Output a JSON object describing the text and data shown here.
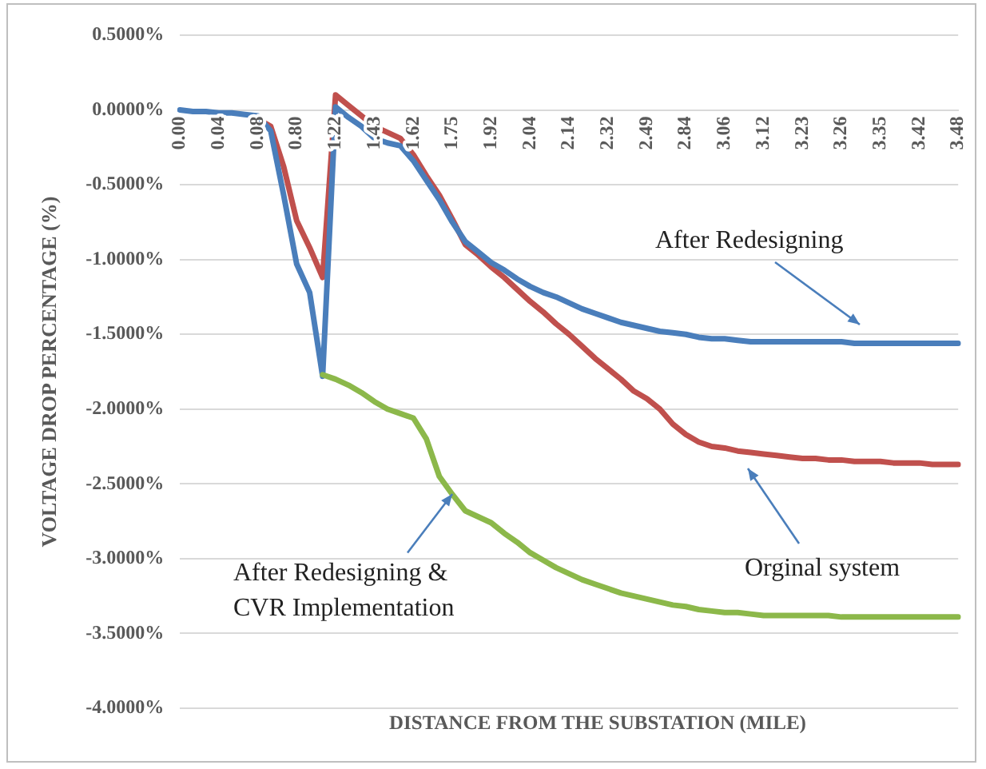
{
  "chart_data": {
    "type": "line",
    "ylabel": "VOLTAGE DROP PERCENTAGE (%)",
    "xlabel": "DISTANCE FROM THE SUBSTATION (MILE)",
    "categories": [
      "0.00",
      null,
      null,
      "0.04",
      null,
      null,
      "0.08",
      null,
      null,
      "0.80",
      null,
      null,
      "1.22",
      null,
      null,
      "1.43",
      null,
      null,
      "1.62",
      null,
      null,
      "1.75",
      null,
      null,
      "1.92",
      null,
      null,
      "2.04",
      null,
      null,
      "2.14",
      null,
      null,
      "2.32",
      null,
      null,
      "2.49",
      null,
      null,
      "2.84",
      null,
      null,
      "3.06",
      null,
      null,
      "3.12",
      null,
      null,
      "3.23",
      null,
      null,
      "3.26",
      null,
      null,
      "3.35",
      null,
      null,
      "3.42",
      null,
      null,
      "3.48"
    ],
    "series": [
      {
        "color": "#c0504d",
        "values": [
          null,
          null,
          null,
          null,
          null,
          null,
          -0.06,
          -0.11,
          -0.38,
          -0.74,
          -0.92,
          -1.12,
          0.1,
          0.03,
          -0.04,
          -0.11,
          -0.15,
          -0.19,
          -0.3,
          -0.44,
          -0.57,
          -0.73,
          -0.9,
          -0.97,
          -1.05,
          -1.12,
          -1.2,
          -1.28,
          -1.35,
          -1.43,
          -1.5,
          -1.58,
          -1.66,
          -1.73,
          -1.8,
          -1.88,
          -1.93,
          -2.0,
          -2.1,
          -2.17,
          -2.22,
          -2.25,
          -2.26,
          -2.28,
          -2.29,
          -2.3,
          -2.31,
          -2.32,
          -2.33,
          -2.33,
          -2.34,
          -2.34,
          -2.35,
          -2.35,
          -2.35,
          -2.36,
          -2.36,
          -2.36,
          -2.37,
          -2.37,
          -2.37
        ]
      },
      {
        "color": "#4a7ebb",
        "values": [
          0,
          -0.01,
          -0.01,
          -0.02,
          -0.02,
          -0.03,
          -0.04,
          -0.14,
          -0.57,
          -1.03,
          -1.22,
          -1.78,
          0.02,
          -0.05,
          -0.11,
          -0.19,
          -0.22,
          -0.24,
          -0.34,
          -0.47,
          -0.6,
          -0.75,
          -0.88,
          -0.95,
          -1.02,
          -1.07,
          -1.13,
          -1.18,
          -1.22,
          -1.25,
          -1.29,
          -1.33,
          -1.36,
          -1.39,
          -1.42,
          -1.44,
          -1.46,
          -1.48,
          -1.49,
          -1.5,
          -1.52,
          -1.53,
          -1.53,
          -1.54,
          -1.55,
          -1.55,
          -1.55,
          -1.55,
          -1.55,
          -1.55,
          -1.55,
          -1.55,
          -1.56,
          -1.56,
          -1.56,
          -1.56,
          -1.56,
          -1.56,
          -1.56,
          -1.56,
          -1.56
        ]
      },
      {
        "color": "#8cb84a",
        "values": [
          null,
          null,
          null,
          null,
          null,
          null,
          null,
          null,
          null,
          null,
          null,
          -1.77,
          -1.8,
          -1.84,
          -1.89,
          -1.95,
          -2.0,
          -2.03,
          -2.06,
          -2.2,
          -2.45,
          -2.57,
          -2.68,
          -2.72,
          -2.76,
          -2.83,
          -2.89,
          -2.96,
          -3.01,
          -3.06,
          -3.1,
          -3.14,
          -3.17,
          -3.2,
          -3.23,
          -3.25,
          -3.27,
          -3.29,
          -3.31,
          -3.32,
          -3.34,
          -3.35,
          -3.36,
          -3.36,
          -3.37,
          -3.38,
          -3.38,
          -3.38,
          -3.38,
          -3.38,
          -3.38,
          -3.39,
          -3.39,
          -3.39,
          -3.39,
          -3.39,
          -3.39,
          -3.39,
          -3.39,
          -3.39,
          -3.39
        ]
      }
    ],
    "ylim": [
      -4,
      0.5
    ],
    "yticks": [
      {
        "value": 0.5,
        "label": "0.5000%"
      },
      {
        "value": 0,
        "label": "0.0000%"
      },
      {
        "value": -0.5,
        "label": "-0.5000%"
      },
      {
        "value": -1,
        "label": "-1.0000%"
      },
      {
        "value": -1.5,
        "label": "-1.5000%"
      },
      {
        "value": -2,
        "label": "-2.0000%"
      },
      {
        "value": -2.5,
        "label": "-2.5000%"
      },
      {
        "value": -3,
        "label": "-3.0000%"
      },
      {
        "value": -3.5,
        "label": "-3.5000%"
      },
      {
        "value": -4,
        "label": "-4.0000%"
      }
    ],
    "grid": "y",
    "legend": false,
    "marker": "none",
    "annotations": [
      "After Redesigning",
      "Orginal system",
      {
        "text": "After Redesigning &\nCVR Implementation",
        "x": "1.75",
        "y": -2.57
      }
    ]
  }
}
